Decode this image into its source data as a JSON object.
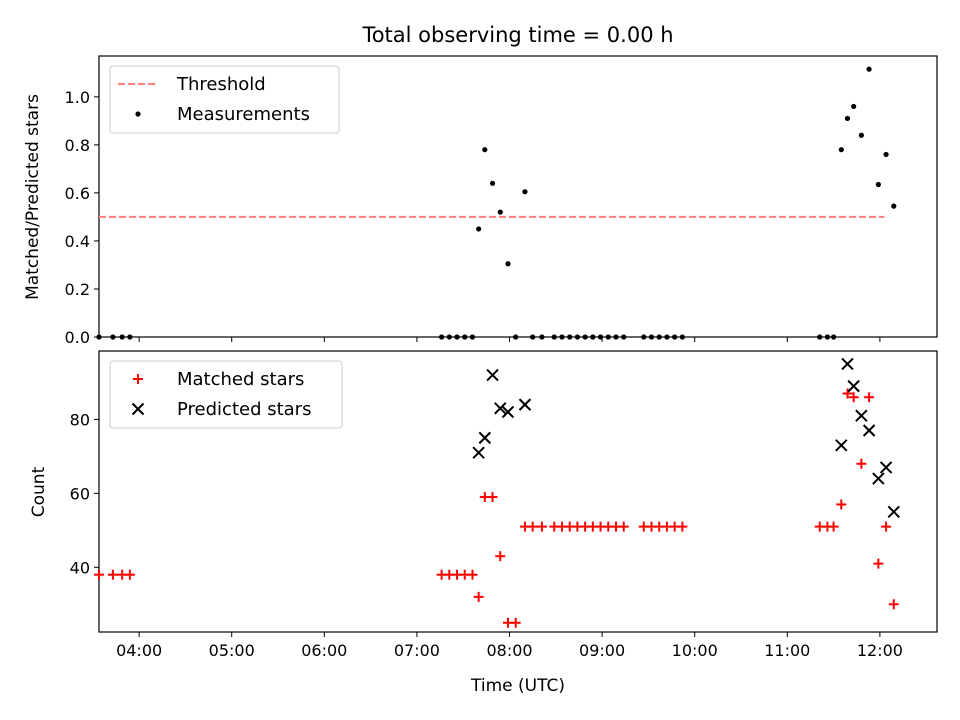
{
  "chart_data": [
    {
      "type": "scatter",
      "title": "Total observing time = 0.00 h",
      "ylabel": "Matched/Predicted stars",
      "xlim": [
        "03:34",
        "12:37"
      ],
      "ylim": [
        0,
        1.17
      ],
      "yticks": [
        "0.0",
        "0.2",
        "0.4",
        "0.6",
        "0.8",
        "1.0"
      ],
      "legend_position": "upper-left",
      "legend": [
        {
          "label": "Threshold",
          "style": "dashed-line",
          "color": "#ff7f7f"
        },
        {
          "label": "Measurements",
          "style": "dot",
          "color": "#000000"
        }
      ],
      "threshold": {
        "name": "Threshold",
        "y": 0.5,
        "x_start": "03:34",
        "x_end": "12:03",
        "color": "#ff7f7f"
      },
      "series": [
        {
          "name": "Measurements",
          "color": "#000000",
          "points": [
            [
              "03:34",
              0
            ],
            [
              "03:43",
              0
            ],
            [
              "03:49",
              0
            ],
            [
              "03:54",
              0
            ],
            [
              "07:16",
              0
            ],
            [
              "07:21",
              0
            ],
            [
              "07:26",
              0
            ],
            [
              "07:31",
              0
            ],
            [
              "07:36",
              0
            ],
            [
              "07:40",
              0.45
            ],
            [
              "07:44",
              0.78
            ],
            [
              "07:49",
              0.64
            ],
            [
              "07:54",
              0.52
            ],
            [
              "07:59",
              0.305
            ],
            [
              "08:04",
              0
            ],
            [
              "08:10",
              0.605
            ],
            [
              "08:15",
              0
            ],
            [
              "08:21",
              0
            ],
            [
              "08:29",
              0
            ],
            [
              "08:34",
              0
            ],
            [
              "08:39",
              0
            ],
            [
              "08:44",
              0
            ],
            [
              "08:49",
              0
            ],
            [
              "08:54",
              0
            ],
            [
              "08:59",
              0
            ],
            [
              "09:04",
              0
            ],
            [
              "09:09",
              0
            ],
            [
              "09:14",
              0
            ],
            [
              "09:27",
              0
            ],
            [
              "09:32",
              0
            ],
            [
              "09:37",
              0
            ],
            [
              "09:42",
              0
            ],
            [
              "09:47",
              0
            ],
            [
              "09:52",
              0
            ],
            [
              "11:21",
              0
            ],
            [
              "11:26",
              0
            ],
            [
              "11:30",
              0
            ],
            [
              "11:35",
              0.78
            ],
            [
              "11:39",
              0.91
            ],
            [
              "11:43",
              0.96
            ],
            [
              "11:48",
              0.84
            ],
            [
              "11:53",
              1.115
            ],
            [
              "11:59",
              0.635
            ],
            [
              "12:04",
              0.76
            ],
            [
              "12:09",
              0.545
            ]
          ]
        }
      ]
    },
    {
      "type": "scatter",
      "xlabel": "Time (UTC)",
      "ylabel": "Count",
      "xlim": [
        "03:34",
        "12:37"
      ],
      "ylim": [
        22.5,
        98.5
      ],
      "yticks": [
        "40",
        "60",
        "80"
      ],
      "xticks": [
        "04:00",
        "05:00",
        "06:00",
        "07:00",
        "08:00",
        "09:00",
        "10:00",
        "11:00",
        "12:00"
      ],
      "legend_position": "upper-left",
      "legend": [
        {
          "label": "Matched stars",
          "style": "plus",
          "color": "#ff0000"
        },
        {
          "label": "Predicted stars",
          "style": "x",
          "color": "#000000"
        }
      ],
      "series": [
        {
          "name": "Matched stars",
          "color": "#ff0000",
          "points": [
            [
              "03:34",
              38
            ],
            [
              "03:43",
              38
            ],
            [
              "03:49",
              38
            ],
            [
              "03:54",
              38
            ],
            [
              "07:16",
              38
            ],
            [
              "07:21",
              38
            ],
            [
              "07:26",
              38
            ],
            [
              "07:31",
              38
            ],
            [
              "07:36",
              38
            ],
            [
              "07:40",
              32
            ],
            [
              "07:44",
              59
            ],
            [
              "07:49",
              59
            ],
            [
              "07:54",
              43
            ],
            [
              "07:59",
              25
            ],
            [
              "08:04",
              25
            ],
            [
              "08:10",
              51
            ],
            [
              "08:15",
              51
            ],
            [
              "08:21",
              51
            ],
            [
              "08:29",
              51
            ],
            [
              "08:34",
              51
            ],
            [
              "08:39",
              51
            ],
            [
              "08:44",
              51
            ],
            [
              "08:49",
              51
            ],
            [
              "08:54",
              51
            ],
            [
              "08:59",
              51
            ],
            [
              "09:04",
              51
            ],
            [
              "09:09",
              51
            ],
            [
              "09:14",
              51
            ],
            [
              "09:27",
              51
            ],
            [
              "09:32",
              51
            ],
            [
              "09:37",
              51
            ],
            [
              "09:42",
              51
            ],
            [
              "09:47",
              51
            ],
            [
              "09:52",
              51
            ],
            [
              "11:21",
              51
            ],
            [
              "11:26",
              51
            ],
            [
              "11:30",
              51
            ],
            [
              "11:35",
              57
            ],
            [
              "11:39",
              87
            ],
            [
              "11:43",
              86
            ],
            [
              "11:48",
              68
            ],
            [
              "11:53",
              86
            ],
            [
              "11:59",
              41
            ],
            [
              "12:04",
              51
            ],
            [
              "12:09",
              30
            ]
          ]
        },
        {
          "name": "Predicted stars",
          "color": "#000000",
          "points": [
            [
              "07:40",
              71
            ],
            [
              "07:44",
              75
            ],
            [
              "07:49",
              92
            ],
            [
              "07:54",
              83
            ],
            [
              "07:59",
              82
            ],
            [
              "08:10",
              84
            ],
            [
              "11:35",
              73
            ],
            [
              "11:39",
              95
            ],
            [
              "11:43",
              89
            ],
            [
              "11:48",
              81
            ],
            [
              "11:53",
              77
            ],
            [
              "11:59",
              64
            ],
            [
              "12:04",
              67
            ],
            [
              "12:09",
              55
            ]
          ]
        }
      ]
    }
  ]
}
